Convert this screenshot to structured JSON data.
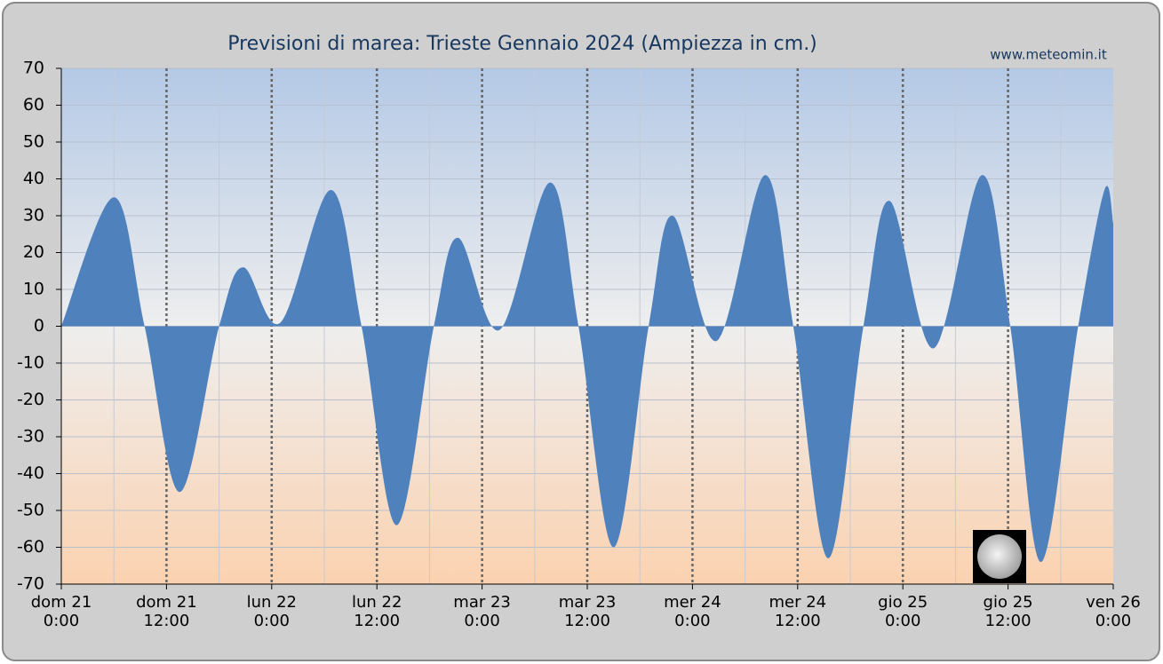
{
  "chart_data": {
    "type": "area",
    "title": "Previsioni di marea: Trieste Gennaio 2024 (Ampiezza in cm.)",
    "source": "www.meteomin.it",
    "color": "#4f81bd",
    "x": [
      "2024-01-21 00:00",
      "2024-01-21 06:00",
      "2024-01-21 09:30",
      "2024-01-21 13:30",
      "2024-01-21 18:00",
      "2024-01-21 20:45",
      "2024-01-22 01:00",
      "2024-01-22 06:45",
      "2024-01-22 10:15",
      "2024-01-22 14:15",
      "2024-01-22 18:30",
      "2024-01-22 21:15",
      "2024-01-23 02:00",
      "2024-01-23 07:45",
      "2024-01-23 11:00",
      "2024-01-23 15:00",
      "2024-01-23 19:00",
      "2024-01-23 21:45",
      "2024-01-24 02:45",
      "2024-01-24 08:15",
      "2024-01-24 11:30",
      "2024-01-24 15:30",
      "2024-01-24 19:30",
      "2024-01-24 22:30",
      "2024-01-25 03:30",
      "2024-01-25 09:00",
      "2024-01-25 12:15",
      "2024-01-25 15:45",
      "2024-01-25 20:00",
      "2024-01-25 23:00",
      "2024-01-26 00:00"
    ],
    "values": [
      0,
      35,
      0,
      -45,
      0,
      16,
      1,
      37,
      0,
      -54,
      0,
      24,
      -1,
      39,
      0,
      -60,
      0,
      30,
      -4,
      41,
      0,
      -63,
      0,
      34,
      -6,
      41,
      0,
      -64,
      0,
      37,
      28
    ],
    "xlim": [
      "2024-01-21 00:00",
      "2024-01-26 00:00"
    ],
    "xticks": [
      {
        "value": "2024-01-21 00:00",
        "label": "dom   21\n0:00"
      },
      {
        "value": "2024-01-21 12:00",
        "label": "dom   21\n12:00"
      },
      {
        "value": "2024-01-22 00:00",
        "label": "lun   22\n0:00"
      },
      {
        "value": "2024-01-22 12:00",
        "label": "lun   22\n12:00"
      },
      {
        "value": "2024-01-23 00:00",
        "label": "mar   23\n0:00"
      },
      {
        "value": "2024-01-23 12:00",
        "label": "mar   23\n12:00"
      },
      {
        "value": "2024-01-24 00:00",
        "label": "mer   24\n0:00"
      },
      {
        "value": "2024-01-24 12:00",
        "label": "mer   24\n12:00"
      },
      {
        "value": "2024-01-25 00:00",
        "label": "gio   25\n0:00"
      },
      {
        "value": "2024-01-25 12:00",
        "label": "gio   25\n12:00"
      },
      {
        "value": "2024-01-26 00:00",
        "label": "ven   26\n0:00"
      }
    ],
    "ylim": [
      -70,
      70
    ],
    "yticks": [
      -70,
      -60,
      -50,
      -40,
      -30,
      -20,
      -10,
      0,
      10,
      20,
      30,
      40,
      50,
      60,
      70
    ],
    "grid": true
  }
}
